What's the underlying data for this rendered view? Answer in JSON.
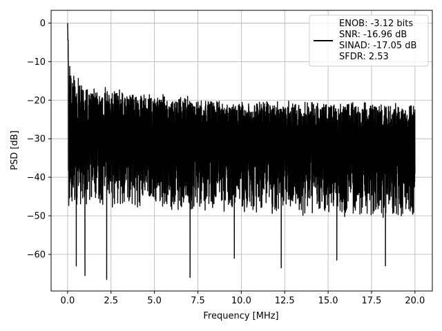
{
  "chart_data": {
    "type": "line",
    "title": "",
    "xlabel": "Frequency [MHz]",
    "ylabel": "PSD [dB]",
    "xlim": [
      -0.95,
      21.0
    ],
    "ylim": [
      -69.5,
      3.3
    ],
    "xticks": [
      0.0,
      2.5,
      5.0,
      7.5,
      10.0,
      12.5,
      15.0,
      17.5,
      20.0
    ],
    "xtick_labels": [
      "0.0",
      "2.5",
      "5.0",
      "7.5",
      "10.0",
      "12.5",
      "15.0",
      "17.5",
      "20.0"
    ],
    "yticks": [
      0,
      -10,
      -20,
      -30,
      -40,
      -50,
      -60
    ],
    "ytick_labels": [
      "0",
      "−10",
      "−20",
      "−30",
      "−40",
      "−50",
      "−60"
    ],
    "grid": true,
    "legend_position": "top-right",
    "legend_lines": [
      "ENOB: -3.12 bits",
      "SNR: -16.96 dB",
      "SINAD: -17.05 dB",
      "SFDR: 2.53"
    ],
    "series": [
      {
        "color": "#000000",
        "x_range": [
          0.0,
          20.0
        ],
        "peak": {
          "x": 0.0,
          "y": 0.0
        },
        "noise_upper_envelope": {
          "x": [
            0.1,
            1.0,
            5.0,
            10.0,
            15.0,
            20.0
          ],
          "y": [
            -12,
            -17,
            -19,
            -21,
            -21,
            -22
          ]
        },
        "noise_median": {
          "x": [
            0.1,
            20.0
          ],
          "y": [
            -30,
            -31
          ]
        },
        "noise_lower_envelope": {
          "x": [
            0.5,
            20.0
          ],
          "y": [
            -47,
            -50
          ]
        },
        "deep_minima": [
          {
            "x": 0.5,
            "y": -63.0
          },
          {
            "x": 1.0,
            "y": -65.5
          },
          {
            "x": 2.25,
            "y": -66.5
          },
          {
            "x": 7.05,
            "y": -66.0
          },
          {
            "x": 9.6,
            "y": -61.0
          },
          {
            "x": 12.3,
            "y": -63.5
          },
          {
            "x": 15.5,
            "y": -61.5
          },
          {
            "x": 18.3,
            "y": -63.0
          }
        ]
      }
    ]
  }
}
